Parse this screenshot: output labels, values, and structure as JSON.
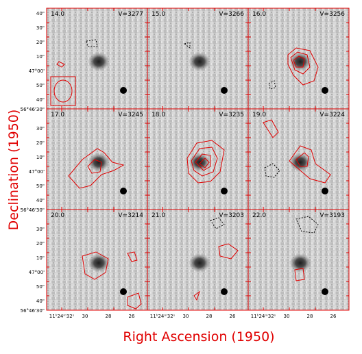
{
  "figure": {
    "xlabel": "Right Ascension (1950)",
    "ylabel": "Declination (1950)",
    "accent_color": "#e00000",
    "contour_color": "#e00000",
    "negative_contour_color": "#000000",
    "y_ticks": [
      "40\"",
      "30\"",
      "20\"",
      "10\"",
      "47°00'",
      "50\"",
      "40\""
    ],
    "y_origin_label": "56°46'30\"",
    "x_ticks": [
      "11ʰ24ᵐ32ˢ",
      "30",
      "28",
      "26"
    ],
    "panels": [
      {
        "channel": "14.0",
        "velocity": "V=3277"
      },
      {
        "channel": "15.0",
        "velocity": "V=3266"
      },
      {
        "channel": "16.0",
        "velocity": "V=3256"
      },
      {
        "channel": "17.0",
        "velocity": "V=3245"
      },
      {
        "channel": "18.0",
        "velocity": "V=3235"
      },
      {
        "channel": "19.0",
        "velocity": "V=3224"
      },
      {
        "channel": "20.0",
        "velocity": "V=3214"
      },
      {
        "channel": "21.0",
        "velocity": "V=3203"
      },
      {
        "channel": "22.0",
        "velocity": "V=3193"
      }
    ]
  }
}
